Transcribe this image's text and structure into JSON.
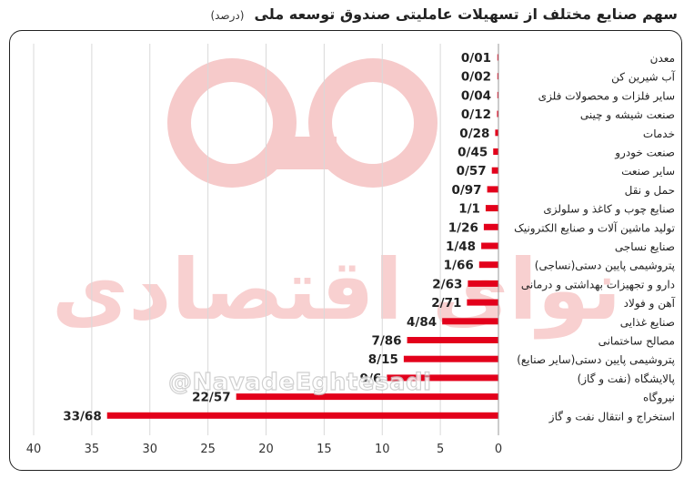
{
  "header": {
    "title": "سهم صنایع مختلف از تسهیلات عاملیتی صندوق توسعه ملی",
    "unit": "(درصد)"
  },
  "watermark": {
    "logo_text": "نوای اقتصادی",
    "handle": "@NavadeEghtesadi"
  },
  "chart_data": {
    "type": "bar",
    "orientation": "horizontal",
    "categories": [
      "معدن",
      "آب شیرین کن",
      "سایر فلزات و محصولات فلزی",
      "صنعت شیشه و چینی",
      "خدمات",
      "صنعت خودرو",
      "سایر صنعت",
      "حمل و نقل",
      "صنایع چوب و کاغذ و سلولزی",
      "تولید ماشین آلات و صنایع الکترونیک",
      "صنایع نساجی",
      "پتروشیمی پایین دستی(نساجی)",
      "دارو و تجهیزات بهداشتی و درمانی",
      "آهن و فولاد",
      "صنایع غذایی",
      "مصالح ساختمانی",
      "پتروشیمی پایین دستی(سایر صنایع)",
      "پالایشگاه (نفت و گاز)",
      "نیروگاه",
      "استخراج و انتقال نفت و گاز"
    ],
    "values": [
      0.01,
      0.02,
      0.04,
      0.12,
      0.28,
      0.45,
      0.57,
      0.97,
      1.1,
      1.26,
      1.48,
      1.66,
      2.63,
      2.71,
      4.84,
      7.86,
      8.15,
      9.6,
      22.57,
      33.68
    ],
    "value_labels": [
      "0/01",
      "0/02",
      "0/04",
      "0/12",
      "0/28",
      "0/45",
      "0/57",
      "0/97",
      "1/1",
      "1/26",
      "1/48",
      "1/66",
      "2/63",
      "2/71",
      "4/84",
      "7/86",
      "8/15",
      "9/6",
      "22/57",
      "33/68"
    ],
    "x_ticks": [
      40,
      35,
      30,
      25,
      20,
      15,
      10,
      5,
      0
    ],
    "xlim": [
      0,
      40
    ],
    "x_reversed": true,
    "grid": "vertical",
    "bar_color": "#e3001b"
  }
}
